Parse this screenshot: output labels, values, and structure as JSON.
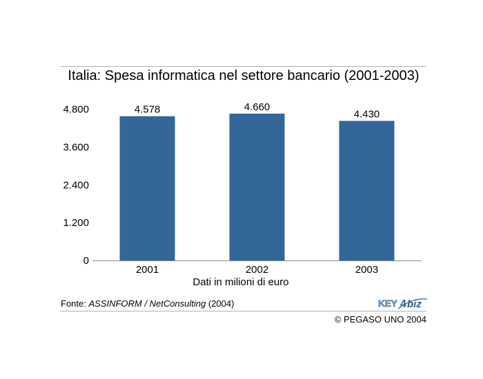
{
  "chart_data": {
    "type": "bar",
    "title": "Italia: Spesa informatica nel settore bancario (2001-2003)",
    "xlabel": "Dati in milioni di euro",
    "ylabel": "",
    "categories": [
      "2001",
      "2002",
      "2003"
    ],
    "values": [
      4578,
      4660,
      4430
    ],
    "data_labels": [
      "4.578",
      "4.660",
      "4.430"
    ],
    "yticks": [
      0,
      1200,
      2400,
      3600,
      4800
    ],
    "ytick_labels": [
      "0",
      "1.200",
      "2.400",
      "3.600",
      "4.800"
    ],
    "ylim": [
      0,
      4800
    ],
    "grid": false,
    "bar_color": "#336699"
  },
  "source": {
    "prefix": "Fonte: ",
    "italic": "ASSINFORM / NetConsulting",
    "suffix": " (2004)"
  },
  "copyright": "© PEGASO UNO 2004",
  "logo": {
    "text_key": "KEY",
    "text_biz": "biz",
    "colors": {
      "key": "#8aa9c4",
      "biz": "#2f5f8f"
    }
  }
}
